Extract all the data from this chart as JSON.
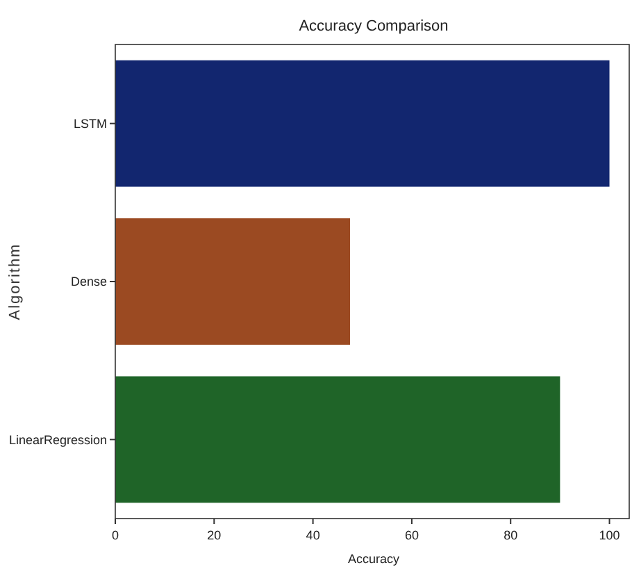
{
  "chart_data": {
    "type": "bar",
    "orientation": "horizontal",
    "title": "Accuracy Comparison",
    "xlabel": "Accuracy",
    "ylabel": "Algorithm",
    "categories": [
      "LSTM",
      "Dense",
      "LinearRegression"
    ],
    "values": [
      100,
      47.5,
      90
    ],
    "colors": [
      "#12266f",
      "#9b4a22",
      "#1f6428"
    ],
    "xlim": [
      0,
      104
    ],
    "xticks": [
      0,
      20,
      40,
      60,
      80,
      100
    ]
  }
}
